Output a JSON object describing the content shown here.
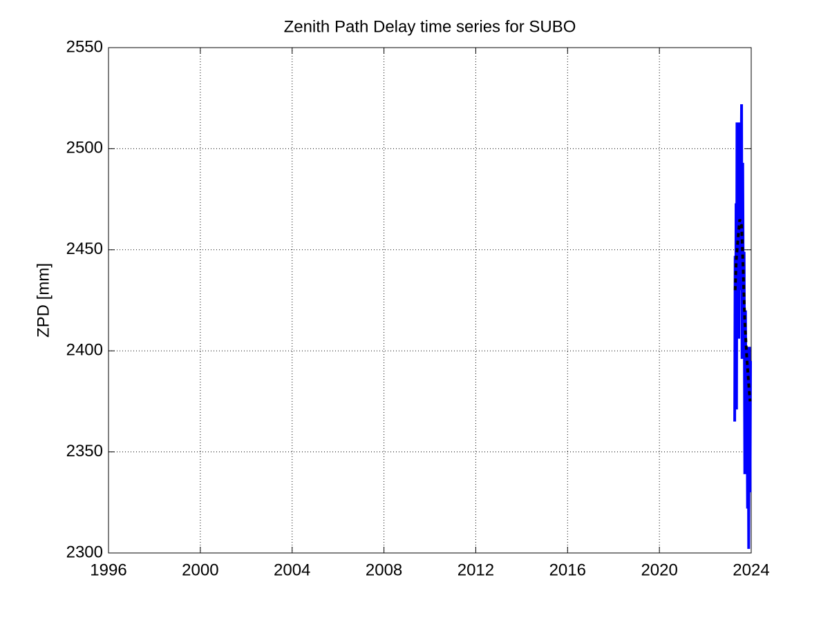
{
  "chart_data": {
    "type": "line",
    "title": "Zenith Path Delay time series for SUBO",
    "ylabel": "ZPD [mm]",
    "xlim": [
      1996,
      2024
    ],
    "xticks": [
      1996,
      2000,
      2004,
      2008,
      2012,
      2016,
      2020,
      2024
    ],
    "ylim": [
      2300,
      2550
    ],
    "yticks": [
      2300,
      2350,
      2400,
      2450,
      2500,
      2550
    ],
    "grid": true,
    "series": [
      {
        "color": "#0000ff",
        "dashed": false,
        "x": [
          2023.28,
          2023.3,
          2023.32,
          2023.34,
          2023.36,
          2023.38,
          2023.4,
          2023.43,
          2023.46,
          2023.49,
          2023.52,
          2023.55,
          2023.58,
          2023.6,
          2023.63,
          2023.66,
          2023.69,
          2023.72,
          2023.75,
          2023.78,
          2023.81,
          2023.84,
          2023.87,
          2023.89,
          2023.92,
          2023.95,
          2023.97
        ],
        "values": [
          2365,
          2447,
          2380,
          2473,
          2371,
          2513,
          2420,
          2500,
          2406,
          2513,
          2430,
          2480,
          2522,
          2396,
          2493,
          2410,
          2449,
          2339,
          2420,
          2350,
          2402,
          2322,
          2380,
          2302,
          2402,
          2330,
          2395
        ]
      },
      {
        "color": "#000000",
        "dashed": true,
        "x": [
          2023.3,
          2023.35,
          2023.42,
          2023.5,
          2023.58,
          2023.65,
          2023.72,
          2023.8,
          2023.88,
          2023.95
        ],
        "values": [
          2430,
          2445,
          2455,
          2465,
          2462,
          2440,
          2415,
          2398,
          2385,
          2375
        ]
      }
    ]
  }
}
